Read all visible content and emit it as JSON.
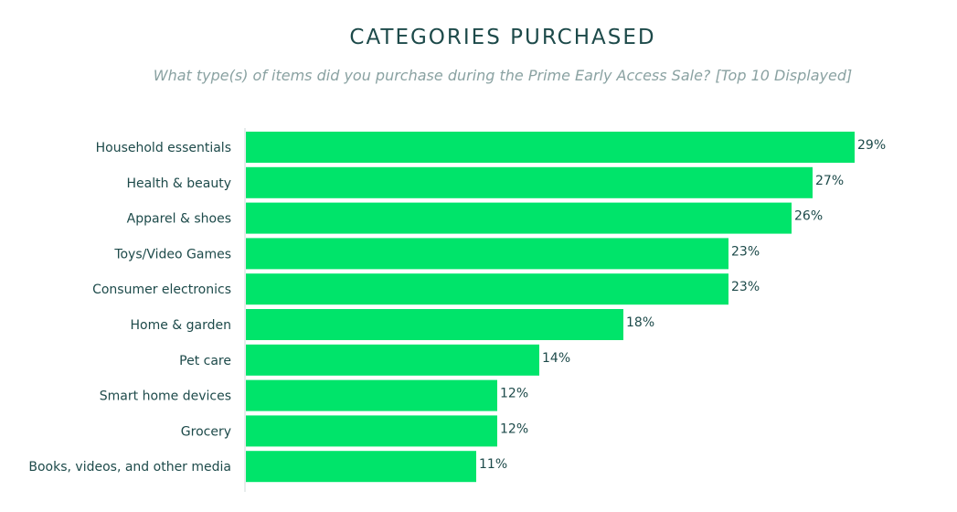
{
  "chart_data": {
    "type": "bar",
    "orientation": "horizontal",
    "title": "CATEGORIES PURCHASED",
    "subtitle": "What type(s) of items did you purchase during the Prime Early Access Sale? [Top 10 Displayed]",
    "categories": [
      "Household essentials",
      "Health & beauty",
      "Apparel & shoes",
      "Toys/Video Games",
      "Consumer electronics",
      "Home & garden",
      "Pet care",
      "Smart home devices",
      "Grocery",
      "Books, videos, and other media"
    ],
    "values": [
      29,
      27,
      26,
      23,
      23,
      18,
      14,
      12,
      12,
      11
    ],
    "value_labels": [
      "29%",
      "27%",
      "26%",
      "23%",
      "23%",
      "18%",
      "14%",
      "12%",
      "12%",
      "11%"
    ],
    "unit": "%",
    "xlim": [
      0,
      29
    ],
    "grid": false,
    "bar_color": "#00e46a",
    "text_color": "#1d4a4a",
    "subtitle_color": "#8aa2a2",
    "axis_color": "#cfd8d8"
  }
}
